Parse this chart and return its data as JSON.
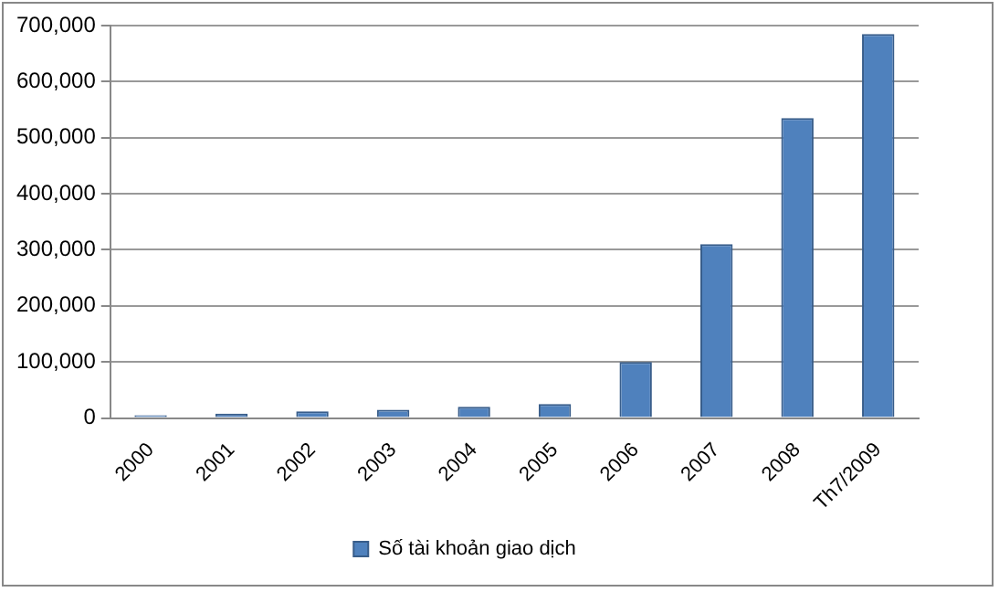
{
  "chart_data": {
    "type": "bar",
    "categories": [
      "2000",
      "2001",
      "2002",
      "2003",
      "2004",
      "2005",
      "2006",
      "2007",
      "2008",
      "Th7/2009"
    ],
    "series": [
      {
        "name": "Số tài khoản giao dịch",
        "color": "#4f81bd",
        "values": [
          5000,
          8000,
          12000,
          15000,
          20000,
          25000,
          100000,
          310000,
          535000,
          685000
        ]
      }
    ],
    "ylim": [
      0,
      700000
    ],
    "yticks": [
      0,
      {
        "value": 100000,
        "label": "100,000"
      },
      {
        "value": 200000,
        "label": "200,000"
      },
      {
        "value": 300000,
        "label": "300,000"
      },
      {
        "value": 400000,
        "label": "400,000"
      },
      {
        "value": 500000,
        "label": "500,000"
      },
      {
        "value": 600000,
        "label": "600,000"
      },
      {
        "value": 700000,
        "label": "700,000"
      }
    ],
    "grid": "y",
    "legend": "bottom"
  }
}
